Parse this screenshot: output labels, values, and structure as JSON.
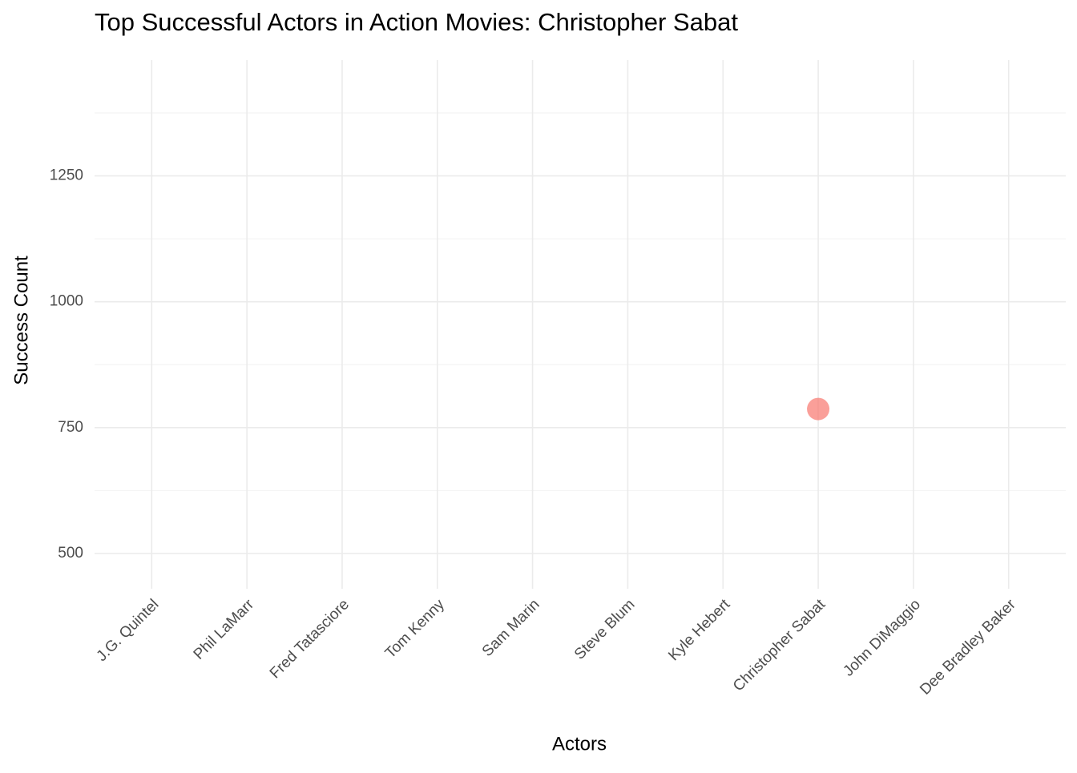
{
  "chart_data": {
    "type": "scatter",
    "title": "Top Successful Actors in Action Movies: Christopher Sabat",
    "x_label": "Actors",
    "y_label": "Success Count",
    "categories": [
      "J.G. Quintel",
      "Phil LaMarr",
      "Fred Tatasciore",
      "Tom Kenny",
      "Sam Marin",
      "Steve Blum",
      "Kyle Hebert",
      "Christopher Sabat",
      "John DiMaggio",
      "Dee Bradley Baker"
    ],
    "values": [
      null,
      null,
      null,
      null,
      null,
      null,
      null,
      787,
      null,
      null
    ],
    "color": "#F8766D",
    "ylim": [
      430,
      1480
    ],
    "yticks": [
      500,
      750,
      1000,
      1250
    ],
    "yminor": [
      625,
      875,
      1125,
      1375
    ],
    "grid": true
  }
}
